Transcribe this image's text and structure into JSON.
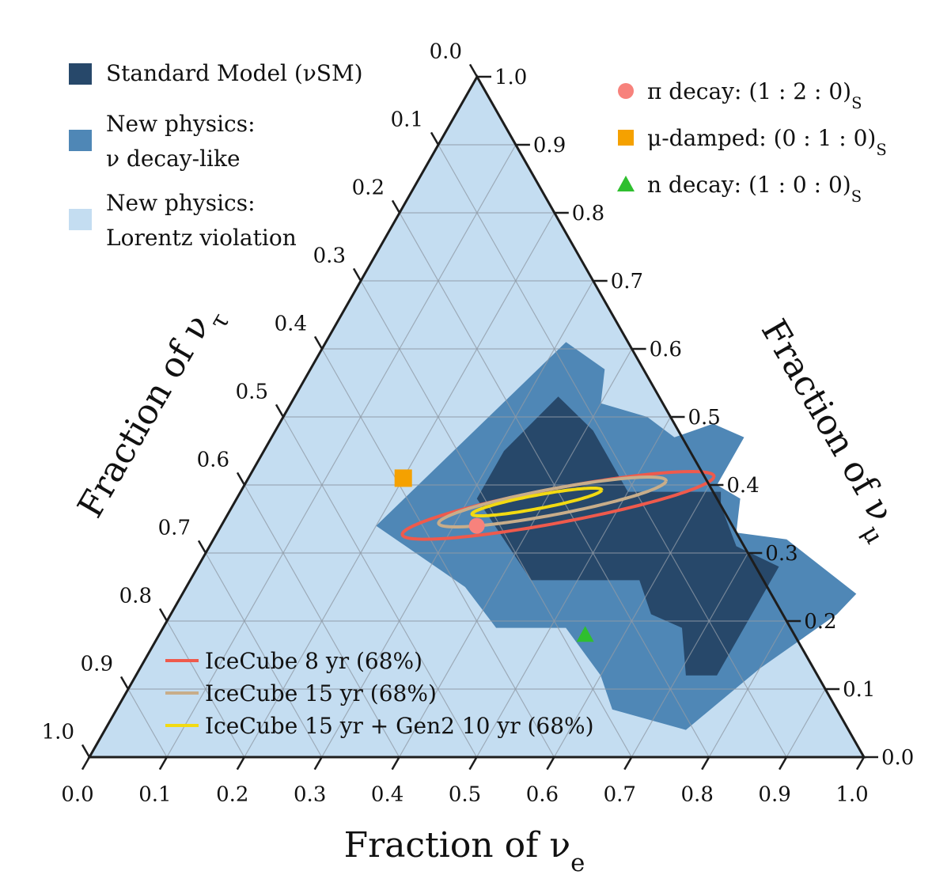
{
  "chart_data": {
    "type": "ternary",
    "axes": {
      "bottom": {
        "label": "Fraction of ν_e",
        "label_main": "Fraction of ν",
        "label_sub": "e",
        "ticks": [
          "0.0",
          "0.1",
          "0.2",
          "0.3",
          "0.4",
          "0.5",
          "0.6",
          "0.7",
          "0.8",
          "0.9",
          "1.0"
        ]
      },
      "right": {
        "label": "Fraction of ν_μ",
        "label_main": "Fraction of ν",
        "label_sub": "μ",
        "ticks": [
          "0.0",
          "0.1",
          "0.2",
          "0.3",
          "0.4",
          "0.5",
          "0.6",
          "0.7",
          "0.8",
          "0.9",
          "1.0"
        ]
      },
      "left": {
        "label": "Fraction of ν_τ",
        "label_main": "Fraction of ν",
        "label_sub": "τ",
        "ticks": [
          "0.0",
          "0.1",
          "0.2",
          "0.3",
          "0.4",
          "0.5",
          "0.6",
          "0.7",
          "0.8",
          "0.9",
          "1.0"
        ]
      },
      "grid": true,
      "grid_step": 0.1
    },
    "regions": [
      {
        "name": "New physics: Lorentz violation",
        "color": "#c4ddf1",
        "covers": "entire triangle"
      },
      {
        "name": "New physics: ν decay-like",
        "color": "#4f87b6",
        "polygon_e_mu": [
          [
            0.31,
            0.61
          ],
          [
            0.38,
            0.57
          ],
          [
            0.4,
            0.52
          ],
          [
            0.47,
            0.5
          ],
          [
            0.52,
            0.47
          ],
          [
            0.56,
            0.49
          ],
          [
            0.61,
            0.47
          ],
          [
            0.61,
            0.4
          ],
          [
            0.65,
            0.38
          ],
          [
            0.67,
            0.33
          ],
          [
            0.74,
            0.32
          ],
          [
            0.87,
            0.24
          ],
          [
            0.86,
            0.21
          ],
          [
            0.8,
            0.13
          ],
          [
            0.75,
            0.04
          ],
          [
            0.64,
            0.07
          ],
          [
            0.6,
            0.12
          ],
          [
            0.52,
            0.19
          ],
          [
            0.43,
            0.19
          ],
          [
            0.36,
            0.25
          ],
          [
            0.2,
            0.34
          ]
        ]
      },
      {
        "name": "Standard Model (νSM)",
        "color": "#27486a",
        "polygon_e_mu": [
          [
            0.31,
            0.38
          ],
          [
            0.31,
            0.45
          ],
          [
            0.34,
            0.53
          ],
          [
            0.41,
            0.48
          ],
          [
            0.46,
            0.43
          ],
          [
            0.5,
            0.39
          ],
          [
            0.62,
            0.39
          ],
          [
            0.63,
            0.37
          ],
          [
            0.68,
            0.31
          ],
          [
            0.75,
            0.28
          ],
          [
            0.75,
            0.12
          ],
          [
            0.71,
            0.12
          ],
          [
            0.67,
            0.19
          ],
          [
            0.62,
            0.21
          ],
          [
            0.58,
            0.26
          ],
          [
            0.44,
            0.26
          ]
        ]
      }
    ],
    "points": [
      {
        "name": "π decay: (1 : 2 : 0)_S",
        "label_main": "π decay: (1 : 2 : 0)",
        "label_sub": "S",
        "e": 0.33,
        "mu": 0.34,
        "tau": 0.33,
        "marker": "circle",
        "color": "#f7827c"
      },
      {
        "name": "μ-damped: (0 : 1 : 0)_S",
        "label_main": "μ-damped: (0 : 1 : 0)",
        "label_sub": "S",
        "e": 0.2,
        "mu": 0.41,
        "tau": 0.39,
        "marker": "square",
        "color": "#f5a100"
      },
      {
        "name": "n decay: (1 : 0 : 0)_S",
        "label_main": "n decay: (1 : 0 : 0)",
        "label_sub": "S",
        "e": 0.55,
        "mu": 0.18,
        "tau": 0.27,
        "marker": "triangle",
        "color": "#2fbf2f"
      }
    ],
    "contours": [
      {
        "name": "IceCube 8 yr (68%)",
        "color": "#ef5a4c",
        "center_e": 0.42,
        "center_mu": 0.37,
        "semi_major": 0.185,
        "semi_minor": 0.028,
        "angle_deg": 13
      },
      {
        "name": "IceCube 15 yr (68%)",
        "color": "#c8ad8a",
        "center_e": 0.41,
        "center_mu": 0.375,
        "semi_major": 0.135,
        "semi_minor": 0.021,
        "angle_deg": 13
      },
      {
        "name": "IceCube 15 yr + Gen2 10 yr (68%)",
        "color": "#f2da12",
        "center_e": 0.39,
        "center_mu": 0.375,
        "semi_major": 0.077,
        "semi_minor": 0.011,
        "angle_deg": 13
      }
    ],
    "legends": {
      "regions": [
        {
          "lines": [
            "Standard Model (νSM)"
          ],
          "color": "#27486a"
        },
        {
          "lines": [
            "New physics:",
            "ν decay-like"
          ],
          "color": "#4f87b6"
        },
        {
          "lines": [
            "New physics:",
            "Lorentz violation"
          ],
          "color": "#c4ddf1"
        }
      ]
    }
  }
}
